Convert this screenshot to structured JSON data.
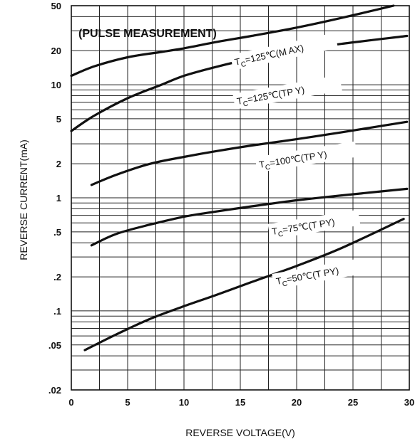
{
  "chart_data": {
    "type": "line",
    "title": "(PULSE MEASUREMENT)",
    "xlabel": "REVERSE VOLTAGE(V)",
    "ylabel": "REVERSE CURRENT(mA)",
    "xlim": [
      0,
      30
    ],
    "ylim": [
      0.02,
      50
    ],
    "yscale": "log",
    "grid": true,
    "x_ticks": [
      "0",
      "5",
      "10",
      "15",
      "20",
      "25",
      "30"
    ],
    "x_tick_values": [
      0,
      5,
      10,
      15,
      20,
      25,
      30
    ],
    "y_ticks": [
      ".02",
      ".05",
      ".1",
      ".2",
      ".5",
      "1",
      "2",
      "5",
      "10",
      "20",
      "50"
    ],
    "y_tick_values": [
      0.02,
      0.05,
      0.1,
      0.2,
      0.5,
      1,
      2,
      5,
      10,
      20,
      50
    ],
    "series": [
      {
        "name": "TC=125C(MAX)",
        "label_main": "T",
        "label_sub": "C",
        "label_rest": "=125℃(M AX)",
        "x": [
          0,
          2,
          5,
          8,
          10,
          13,
          16,
          20,
          24,
          28.6
        ],
        "y": [
          12,
          14.5,
          17.5,
          19.5,
          21,
          24,
          27,
          32,
          39,
          50
        ]
      },
      {
        "name": "TC=125C(TYP)",
        "label_main": "T",
        "label_sub": "C",
        "label_rest": "=125℃(TP Y)",
        "x": [
          0,
          2,
          5,
          8,
          10,
          13,
          16,
          20,
          24,
          29.8
        ],
        "y": [
          3.9,
          5.3,
          7.6,
          10,
          12,
          14.5,
          17,
          20,
          23,
          27
        ]
      },
      {
        "name": "TC=100C(TYP)",
        "label_main": "T",
        "label_sub": "C",
        "label_rest": "=100℃(TP Y)",
        "x": [
          1.8,
          4,
          7,
          10,
          13,
          16,
          20,
          24,
          29.8
        ],
        "y": [
          1.3,
          1.6,
          2,
          2.3,
          2.6,
          2.9,
          3.3,
          3.8,
          4.7
        ]
      },
      {
        "name": "TC=75C(TYP)",
        "label_main": "T",
        "label_sub": "C",
        "label_rest": "=75℃(T PY)",
        "x": [
          1.8,
          4,
          7,
          10,
          13,
          16,
          20,
          24,
          29.8
        ],
        "y": [
          0.38,
          0.48,
          0.58,
          0.68,
          0.76,
          0.84,
          0.95,
          1.05,
          1.2
        ]
      },
      {
        "name": "TC=50C(TYP)",
        "label_main": "T",
        "label_sub": "C",
        "label_rest": "=50℃(T PY)",
        "x": [
          1.2,
          4,
          7,
          10,
          13,
          16,
          20,
          24,
          29.5
        ],
        "y": [
          0.045,
          0.062,
          0.085,
          0.11,
          0.14,
          0.18,
          0.25,
          0.36,
          0.65
        ]
      }
    ]
  }
}
